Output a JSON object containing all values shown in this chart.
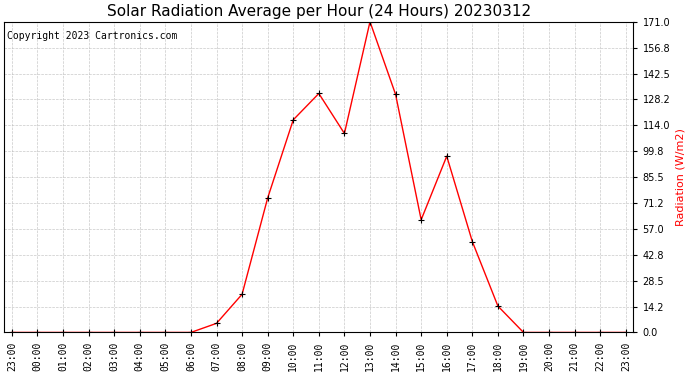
{
  "title": "Solar Radiation Average per Hour (24 Hours) 20230312",
  "copyright_text": "Copyright 2023 Cartronics.com",
  "ylabel": "Radiation (W/m2)",
  "ylabel_color": "red",
  "line_color": "red",
  "marker_color": "black",
  "background_color": "white",
  "grid_color": "#bbbbbb",
  "labels": [
    "23:00",
    "00:00",
    "01:00",
    "02:00",
    "03:00",
    "04:00",
    "05:00",
    "06:00",
    "07:00",
    "08:00",
    "09:00",
    "10:00",
    "11:00",
    "12:00",
    "13:00",
    "14:00",
    "15:00",
    "16:00",
    "17:00",
    "18:00",
    "19:00",
    "20:00",
    "21:00",
    "22:00",
    "23:00"
  ],
  "values": [
    0.0,
    0.0,
    0.0,
    0.0,
    0.0,
    0.0,
    0.0,
    0.0,
    5.0,
    21.0,
    74.0,
    117.0,
    131.5,
    109.5,
    171.0,
    131.0,
    62.0,
    97.0,
    50.0,
    14.5,
    0.0,
    0.0,
    0.0,
    0.0,
    0.0
  ],
  "yticks": [
    0.0,
    14.2,
    28.5,
    42.8,
    57.0,
    71.2,
    85.5,
    99.8,
    114.0,
    128.2,
    142.5,
    156.8,
    171.0
  ],
  "ylim": [
    0.0,
    171.0
  ],
  "title_fontsize": 11,
  "copyright_fontsize": 7,
  "ylabel_fontsize": 8,
  "tick_fontsize": 7
}
